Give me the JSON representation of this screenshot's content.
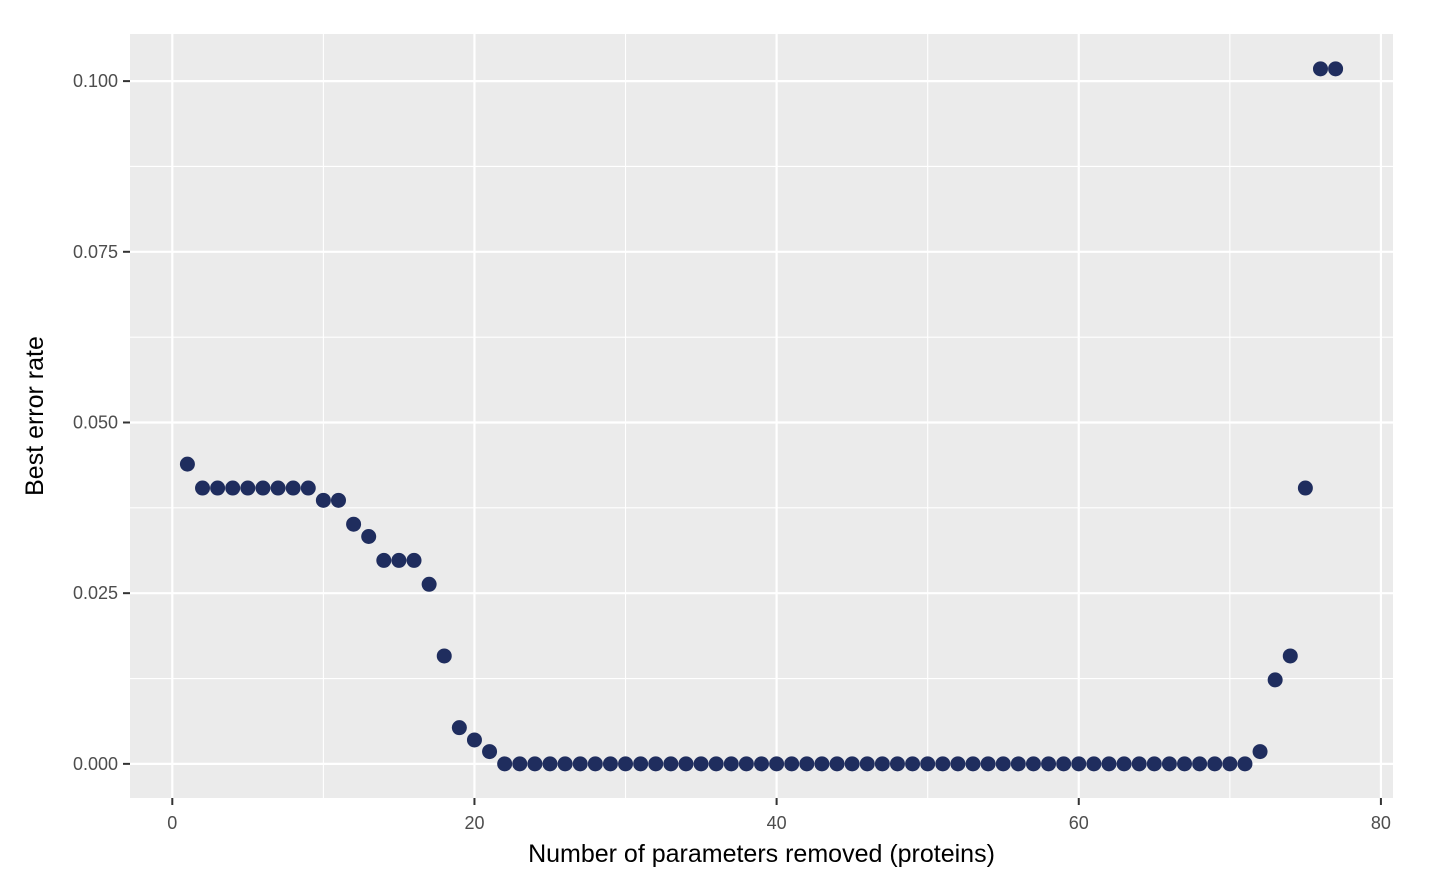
{
  "chart_data": {
    "type": "scatter",
    "xlabel": "Number of parameters removed (proteins)",
    "ylabel": "Best error rate",
    "xlim": [
      -2.8,
      80.8
    ],
    "ylim": [
      -0.005,
      0.1069
    ],
    "x_ticks": [
      0,
      20,
      40,
      60,
      80
    ],
    "x_tick_labels": [
      "0",
      "20",
      "40",
      "60",
      "80"
    ],
    "y_ticks": [
      0.0,
      0.025,
      0.05,
      0.075,
      0.1
    ],
    "y_tick_labels": [
      "0.000",
      "0.025",
      "0.050",
      "0.075",
      "0.100"
    ],
    "grid": true,
    "panel_background": "#ebebeb",
    "grid_color": "#ffffff",
    "point_color": "#1f2d5e",
    "series": [
      {
        "x": [
          1,
          2,
          3,
          4,
          5,
          6,
          7,
          8,
          9,
          10,
          11,
          12,
          13,
          14,
          15,
          16,
          17,
          18,
          19,
          20,
          21,
          22,
          23,
          24,
          25,
          26,
          27,
          28,
          29,
          30,
          31,
          32,
          33,
          34,
          35,
          36,
          37,
          38,
          39,
          40,
          41,
          42,
          43,
          44,
          45,
          46,
          47,
          48,
          49,
          50,
          51,
          52,
          53,
          54,
          55,
          56,
          57,
          58,
          59,
          60,
          61,
          62,
          63,
          64,
          65,
          66,
          67,
          68,
          69,
          70,
          71,
          72,
          73,
          74,
          75,
          76,
          77
        ],
        "y": [
          0.0439,
          0.0404,
          0.0404,
          0.0404,
          0.0404,
          0.0404,
          0.0404,
          0.0404,
          0.0404,
          0.0386,
          0.0386,
          0.0351,
          0.0333,
          0.0298,
          0.0298,
          0.0298,
          0.0263,
          0.0158,
          0.0053,
          0.0035,
          0.0018,
          0.0,
          0.0,
          0.0,
          0.0,
          0.0,
          0.0,
          0.0,
          0.0,
          0.0,
          0.0,
          0.0,
          0.0,
          0.0,
          0.0,
          0.0,
          0.0,
          0.0,
          0.0,
          0.0,
          0.0,
          0.0,
          0.0,
          0.0,
          0.0,
          0.0,
          0.0,
          0.0,
          0.0,
          0.0,
          0.0,
          0.0,
          0.0,
          0.0,
          0.0,
          0.0,
          0.0,
          0.0,
          0.0,
          0.0,
          0.0,
          0.0,
          0.0,
          0.0,
          0.0,
          0.0,
          0.0,
          0.0,
          0.0,
          0.0,
          0.0,
          0.0018,
          0.0123,
          0.0158,
          0.0404,
          0.1018,
          0.1018
        ]
      }
    ]
  }
}
